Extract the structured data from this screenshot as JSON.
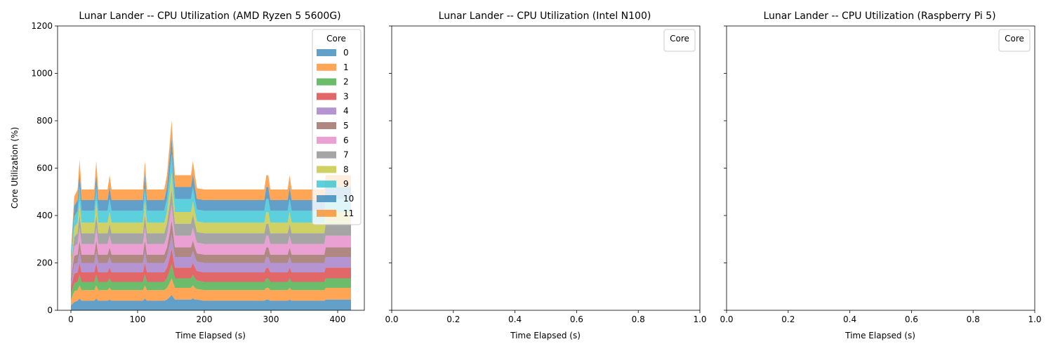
{
  "chart_data": [
    {
      "type": "area",
      "stacked": true,
      "title": "Lunar Lander -- CPU Utilization (AMD Ryzen 5 5600G)",
      "xlabel": "Time Elapsed (s)",
      "ylabel": "Core Utilization (%)",
      "xlim": [
        -20,
        440
      ],
      "ylim": [
        0,
        1200
      ],
      "xticks": [
        0,
        100,
        200,
        300,
        400
      ],
      "yticks": [
        0,
        200,
        400,
        600,
        800,
        1000,
        1200
      ],
      "legend": {
        "title": "Core",
        "position": "top-right"
      },
      "x": [
        0,
        5,
        10,
        13,
        16,
        20,
        35,
        38,
        41,
        50,
        55,
        58,
        61,
        70,
        80,
        100,
        108,
        111,
        114,
        120,
        130,
        135,
        140,
        144,
        148,
        151,
        156,
        160,
        180,
        183,
        186,
        189,
        200,
        250,
        290,
        293,
        296,
        299,
        320,
        325,
        328,
        331,
        340,
        380,
        382,
        420
      ],
      "series": [
        {
          "name": "0",
          "color": "#1f77b4",
          "values": [
            20,
            35,
            40,
            50,
            40,
            40,
            40,
            50,
            40,
            40,
            40,
            45,
            40,
            40,
            40,
            40,
            40,
            50,
            40,
            40,
            40,
            40,
            40,
            45,
            55,
            65,
            45,
            45,
            45,
            50,
            45,
            45,
            40,
            40,
            40,
            45,
            45,
            40,
            40,
            40,
            45,
            40,
            40,
            40,
            45,
            45
          ]
        },
        {
          "name": "1",
          "color": "#ff7f0e",
          "values": [
            25,
            45,
            45,
            55,
            45,
            45,
            45,
            55,
            45,
            45,
            45,
            50,
            45,
            45,
            45,
            45,
            45,
            55,
            45,
            45,
            45,
            45,
            45,
            50,
            60,
            70,
            50,
            50,
            50,
            55,
            50,
            45,
            45,
            45,
            45,
            50,
            50,
            45,
            45,
            45,
            50,
            45,
            45,
            45,
            50,
            50
          ]
        },
        {
          "name": "2",
          "color": "#2ca02c",
          "values": [
            25,
            35,
            35,
            45,
            35,
            35,
            35,
            45,
            35,
            35,
            35,
            40,
            35,
            35,
            35,
            35,
            35,
            45,
            35,
            35,
            35,
            35,
            35,
            40,
            50,
            60,
            40,
            40,
            40,
            45,
            40,
            35,
            35,
            35,
            35,
            40,
            40,
            35,
            35,
            35,
            40,
            35,
            35,
            35,
            40,
            40
          ]
        },
        {
          "name": "3",
          "color": "#d62728",
          "values": [
            25,
            40,
            40,
            50,
            40,
            40,
            40,
            50,
            40,
            40,
            40,
            45,
            40,
            40,
            40,
            40,
            40,
            50,
            40,
            40,
            40,
            40,
            40,
            45,
            55,
            65,
            45,
            45,
            45,
            50,
            45,
            40,
            40,
            40,
            40,
            45,
            45,
            40,
            40,
            40,
            45,
            40,
            40,
            40,
            45,
            45
          ]
        },
        {
          "name": "4",
          "color": "#9467bd",
          "values": [
            20,
            40,
            40,
            50,
            40,
            40,
            40,
            50,
            40,
            40,
            40,
            45,
            40,
            40,
            40,
            40,
            40,
            50,
            40,
            40,
            40,
            40,
            40,
            45,
            55,
            60,
            45,
            45,
            45,
            50,
            45,
            40,
            40,
            40,
            40,
            45,
            45,
            40,
            40,
            40,
            45,
            40,
            40,
            40,
            45,
            45
          ]
        },
        {
          "name": "5",
          "color": "#8c564b",
          "values": [
            20,
            35,
            35,
            45,
            35,
            35,
            35,
            45,
            35,
            35,
            35,
            40,
            35,
            35,
            35,
            35,
            35,
            45,
            35,
            35,
            35,
            35,
            35,
            40,
            50,
            60,
            40,
            40,
            40,
            45,
            40,
            35,
            35,
            35,
            35,
            40,
            40,
            35,
            35,
            35,
            40,
            35,
            35,
            35,
            40,
            40
          ]
        },
        {
          "name": "6",
          "color": "#e377c2",
          "values": [
            20,
            40,
            45,
            55,
            45,
            45,
            45,
            55,
            45,
            45,
            45,
            50,
            45,
            45,
            45,
            45,
            45,
            55,
            45,
            45,
            45,
            45,
            45,
            50,
            60,
            65,
            50,
            50,
            50,
            55,
            50,
            45,
            45,
            45,
            45,
            50,
            50,
            45,
            45,
            45,
            50,
            45,
            45,
            45,
            50,
            50
          ]
        },
        {
          "name": "7",
          "color": "#7f7f7f",
          "values": [
            20,
            40,
            45,
            55,
            45,
            45,
            45,
            55,
            45,
            45,
            45,
            50,
            45,
            45,
            45,
            45,
            45,
            55,
            45,
            45,
            45,
            45,
            45,
            50,
            60,
            65,
            50,
            50,
            50,
            55,
            50,
            45,
            45,
            45,
            45,
            50,
            50,
            45,
            45,
            45,
            50,
            45,
            45,
            45,
            50,
            50
          ]
        },
        {
          "name": "8",
          "color": "#bcbd22",
          "values": [
            20,
            40,
            45,
            55,
            45,
            45,
            45,
            55,
            45,
            45,
            45,
            50,
            45,
            45,
            45,
            45,
            45,
            55,
            45,
            45,
            45,
            45,
            45,
            50,
            60,
            70,
            50,
            50,
            50,
            55,
            50,
            45,
            45,
            45,
            45,
            50,
            50,
            45,
            45,
            45,
            50,
            45,
            45,
            45,
            50,
            50
          ]
        },
        {
          "name": "9",
          "color": "#17becf",
          "values": [
            20,
            45,
            50,
            65,
            50,
            50,
            50,
            60,
            50,
            50,
            50,
            55,
            50,
            50,
            50,
            50,
            50,
            60,
            50,
            50,
            50,
            50,
            50,
            55,
            70,
            80,
            55,
            55,
            55,
            60,
            55,
            50,
            50,
            50,
            50,
            55,
            55,
            50,
            50,
            50,
            55,
            50,
            50,
            50,
            55,
            55
          ]
        },
        {
          "name": "10",
          "color": "#1f77b4",
          "values": [
            15,
            45,
            45,
            55,
            45,
            45,
            45,
            55,
            45,
            45,
            45,
            50,
            45,
            45,
            45,
            45,
            45,
            55,
            45,
            45,
            45,
            45,
            45,
            50,
            65,
            70,
            50,
            50,
            50,
            55,
            50,
            45,
            45,
            45,
            45,
            50,
            50,
            45,
            45,
            45,
            50,
            45,
            45,
            45,
            50,
            50
          ]
        },
        {
          "name": "11",
          "color": "#ff7f0e",
          "values": [
            15,
            40,
            45,
            55,
            45,
            45,
            45,
            55,
            45,
            45,
            45,
            50,
            45,
            45,
            45,
            45,
            45,
            55,
            45,
            45,
            45,
            45,
            45,
            50,
            60,
            70,
            50,
            50,
            50,
            55,
            50,
            45,
            45,
            45,
            45,
            50,
            50,
            45,
            45,
            45,
            50,
            45,
            45,
            45,
            50,
            50
          ]
        }
      ]
    },
    {
      "type": "area",
      "title": "Lunar Lander -- CPU Utilization (Intel N100)",
      "xlabel": "Time Elapsed (s)",
      "xlim": [
        0,
        1
      ],
      "ylim": [
        0,
        1200
      ],
      "xticks": [
        "0.0",
        "0.2",
        "0.4",
        "0.6",
        "0.8",
        "1.0"
      ],
      "legend": {
        "title": "Core",
        "position": "top-right"
      },
      "series": []
    },
    {
      "type": "area",
      "title": "Lunar Lander -- CPU Utilization (Raspberry Pi 5)",
      "xlabel": "Time Elapsed (s)",
      "xlim": [
        0,
        1
      ],
      "ylim": [
        0,
        1200
      ],
      "xticks": [
        "0.0",
        "0.2",
        "0.4",
        "0.6",
        "0.8",
        "1.0"
      ],
      "legend": {
        "title": "Core",
        "position": "top-right"
      },
      "series": []
    }
  ]
}
